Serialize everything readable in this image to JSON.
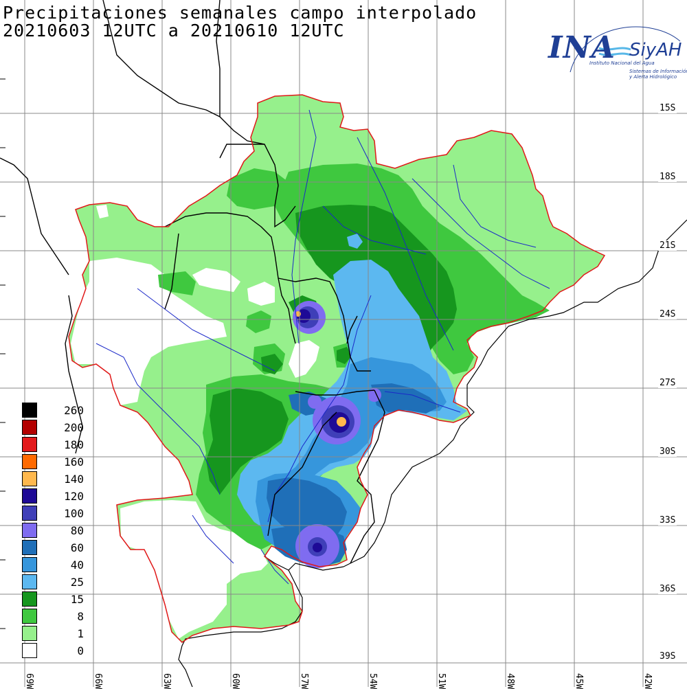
{
  "title": {
    "line1": "Precipitaciones semanales campo interpolado",
    "line2": "20210603 12UTC a 20210610 12UTC"
  },
  "logo": {
    "name": "INA",
    "brand": "SiyAH",
    "subtitle1": "Instituto Nacional del Agua",
    "subtitle2a": "Sistemas de Información",
    "subtitle2b": "y Alerta Hidrológico",
    "color": "#1f3f95"
  },
  "latitude_labels": [
    "15S",
    "18S",
    "21S",
    "24S",
    "27S",
    "30S",
    "33S",
    "36S",
    "39S"
  ],
  "longitude_labels": [
    "69W",
    "66W",
    "63W",
    "60W",
    "57W",
    "54W",
    "51W",
    "48W",
    "45W",
    "42W"
  ],
  "legend": {
    "items": [
      {
        "label": "260",
        "color": "#000000"
      },
      {
        "label": "200",
        "color": "#b30000"
      },
      {
        "label": "180",
        "color": "#e31a1c"
      },
      {
        "label": "160",
        "color": "#ff6a00"
      },
      {
        "label": "140",
        "color": "#ffb84d"
      },
      {
        "label": "120",
        "color": "#1e0a96"
      },
      {
        "label": "100",
        "color": "#3f3fb8"
      },
      {
        "label": "80",
        "color": "#7f6cf0"
      },
      {
        "label": "60",
        "color": "#1f6fb8"
      },
      {
        "label": "40",
        "color": "#3696dc"
      },
      {
        "label": "25",
        "color": "#5cb8f0"
      },
      {
        "label": "15",
        "color": "#16961e"
      },
      {
        "label": "8",
        "color": "#3fc83f"
      },
      {
        "label": "1",
        "color": "#96f08c"
      },
      {
        "label": "0",
        "color": "#ffffff"
      }
    ]
  }
}
